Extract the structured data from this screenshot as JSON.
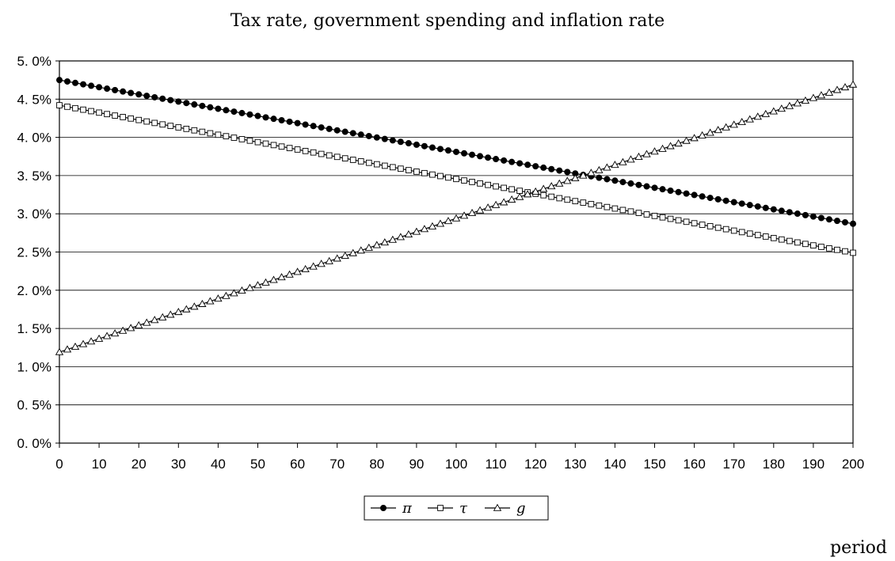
{
  "chart_data": {
    "type": "line",
    "title": "Tax rate, government spending and inflation rate",
    "xlabel": "period",
    "ylabel": "",
    "xlim": [
      0,
      200
    ],
    "ylim": [
      0.0,
      5.0
    ],
    "x_ticks": [
      "0",
      "10",
      "20",
      "30",
      "40",
      "50",
      "60",
      "70",
      "80",
      "90",
      "100",
      "110",
      "120",
      "130",
      "140",
      "150",
      "160",
      "170",
      "180",
      "190",
      "200"
    ],
    "y_ticks": [
      "0. 0%",
      "0. 5%",
      "1. 0%",
      "1. 5%",
      "2. 0%",
      "2. 5%",
      "3. 0%",
      "3. 5%",
      "4. 0%",
      "4. 5%",
      "5. 0%"
    ],
    "y_tick_values": [
      0.0,
      0.5,
      1.0,
      1.5,
      2.0,
      2.5,
      3.0,
      3.5,
      4.0,
      4.5,
      5.0
    ],
    "grid": "horizontal",
    "legend_position": "bottom-center",
    "marker_step": 2,
    "series": [
      {
        "name": "π",
        "marker": "filled-circle",
        "x": [
          0,
          200
        ],
        "values": [
          4.75,
          2.87
        ]
      },
      {
        "name": "τ",
        "marker": "open-square",
        "x": [
          0,
          200
        ],
        "values": [
          4.42,
          2.49
        ]
      },
      {
        "name": "g",
        "marker": "open-triangle",
        "x": [
          0,
          200
        ],
        "values": [
          1.19,
          4.69
        ]
      }
    ]
  }
}
